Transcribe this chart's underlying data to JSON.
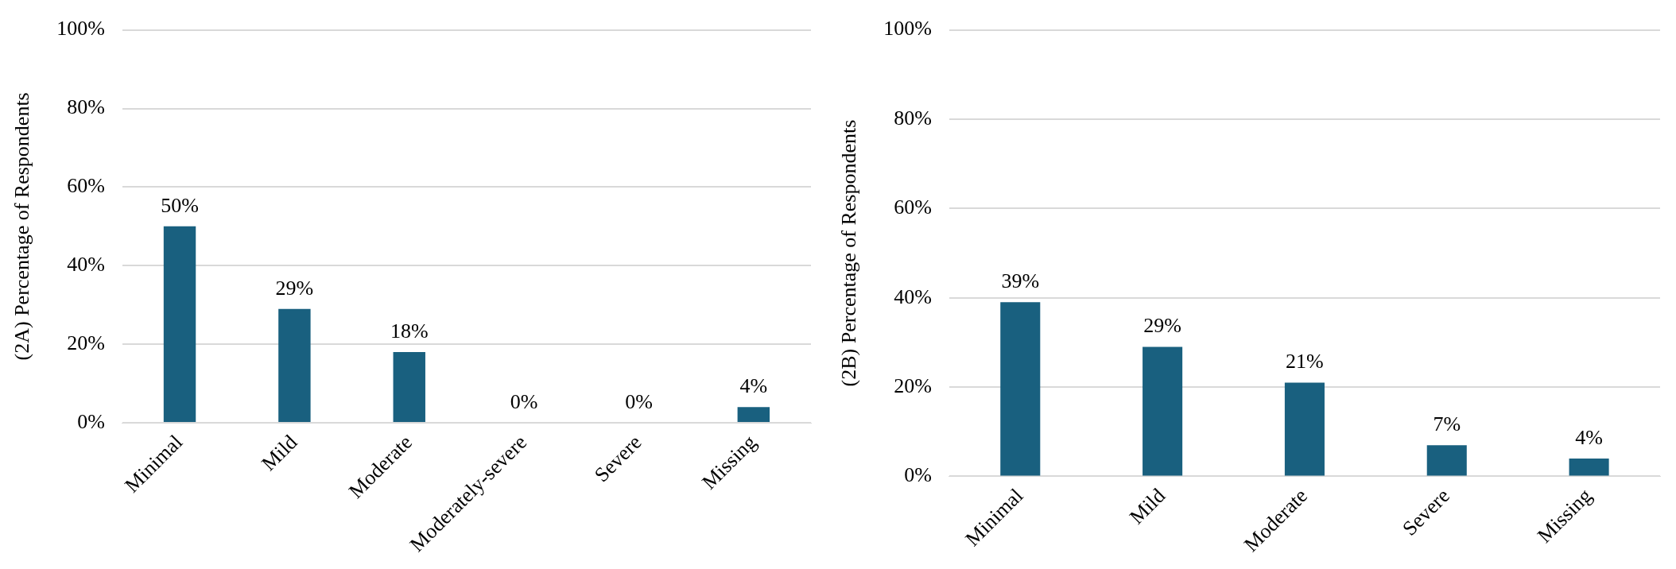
{
  "chart_data": [
    {
      "type": "bar",
      "ylabel": "(2A) Percentage of Respondents",
      "categories": [
        "Minimal",
        "Mild",
        "Moderate",
        "Moderately-severe",
        "Severe",
        "Missing"
      ],
      "values": [
        50,
        29,
        18,
        0,
        0,
        4
      ],
      "value_labels": [
        "50%",
        "29%",
        "18%",
        "0%",
        "0%",
        "4%"
      ],
      "color": "#19607f",
      "ylim": [
        0,
        100
      ],
      "yticks": [
        {
          "value": 0,
          "label": "0%"
        },
        {
          "value": 20,
          "label": "20%"
        },
        {
          "value": 40,
          "label": "40%"
        },
        {
          "value": 60,
          "label": "60%"
        },
        {
          "value": 80,
          "label": "80%"
        },
        {
          "value": 100,
          "label": "100%"
        }
      ],
      "grid": "y",
      "legend": false
    },
    {
      "type": "bar",
      "ylabel": "(2B) Percentage of Respondents",
      "categories": [
        "Minimal",
        "Mild",
        "Moderate",
        "Severe",
        "Missing"
      ],
      "values": [
        39,
        29,
        21,
        7,
        4
      ],
      "value_labels": [
        "39%",
        "29%",
        "21%",
        "7%",
        "4%"
      ],
      "color": "#19607f",
      "ylim": [
        0,
        100
      ],
      "yticks": [
        {
          "value": 0,
          "label": "0%"
        },
        {
          "value": 20,
          "label": "20%"
        },
        {
          "value": 40,
          "label": "40%"
        },
        {
          "value": 60,
          "label": "60%"
        },
        {
          "value": 80,
          "label": "80%"
        },
        {
          "value": 100,
          "label": "100%"
        }
      ],
      "grid": "y",
      "legend": false
    }
  ]
}
